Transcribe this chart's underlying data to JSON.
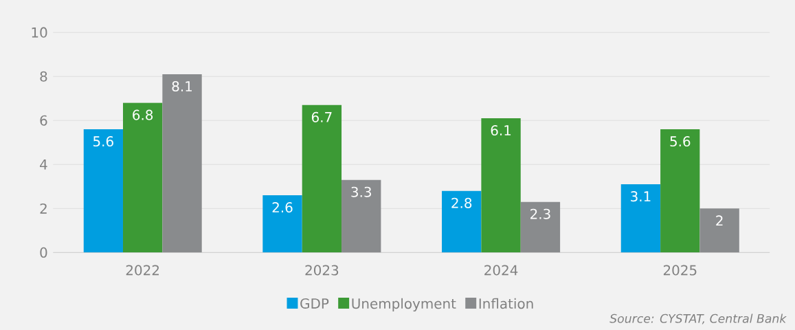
{
  "chart_data": {
    "type": "bar",
    "categories": [
      "2022",
      "2023",
      "2024",
      "2025"
    ],
    "series": [
      {
        "name": "GDP",
        "color": "#009ee0",
        "values": [
          5.6,
          2.6,
          2.8,
          3.1
        ]
      },
      {
        "name": "Unemployment",
        "color": "#3c9a35",
        "values": [
          6.8,
          6.7,
          6.1,
          5.6
        ]
      },
      {
        "name": "Inflation",
        "color": "#898b8d",
        "values": [
          8.1,
          3.3,
          2.3,
          2
        ]
      }
    ],
    "ylim": [
      0,
      10
    ],
    "yticks": [
      0,
      2,
      4,
      6,
      8,
      10
    ],
    "grid": "y",
    "legend": "bottom",
    "data_labels": true,
    "annotations": [
      "Source: CYSTAT, Central Bank"
    ]
  }
}
